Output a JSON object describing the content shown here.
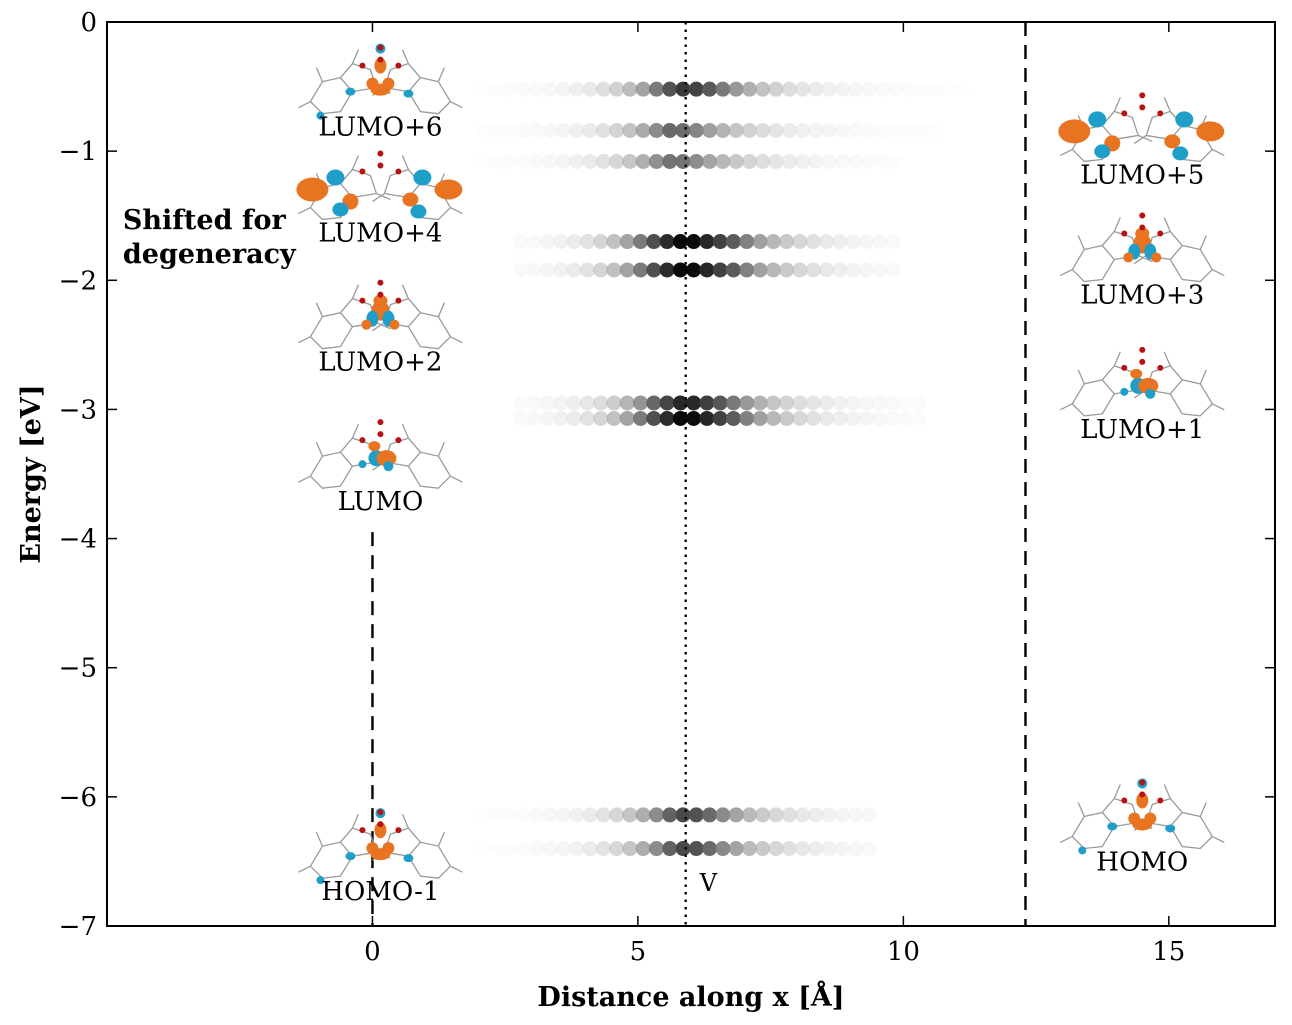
{
  "chart_data": {
    "type": "scatter",
    "title": "",
    "xlabel": "Distance along x [Å]",
    "ylabel": "Energy [eV]",
    "xlim": [
      -5,
      17
    ],
    "ylim": [
      -7,
      0
    ],
    "xticks": [
      {
        "value": 0,
        "label": "0"
      },
      {
        "value": 5,
        "label": "5"
      },
      {
        "value": 10,
        "label": "10"
      },
      {
        "value": 15,
        "label": "15"
      }
    ],
    "yticks": [
      {
        "value": 0,
        "label": "0"
      },
      {
        "value": -1,
        "label": "−1"
      },
      {
        "value": -2,
        "label": "−2"
      },
      {
        "value": -3,
        "label": "−3"
      },
      {
        "value": -4,
        "label": "−4"
      },
      {
        "value": -5,
        "label": "−5"
      },
      {
        "value": -6,
        "label": "−6"
      },
      {
        "value": -7,
        "label": "−7"
      }
    ],
    "grid": false,
    "density_rows": [
      {
        "energy": -0.52,
        "x_start": 2.1,
        "x_end": 11.2,
        "x_peak": 5.9,
        "max_intensity": 0.78
      },
      {
        "energy": -0.84,
        "x_start": 2.1,
        "x_end": 10.6,
        "x_peak": 5.7,
        "max_intensity": 0.62
      },
      {
        "energy": -1.08,
        "x_start": 2.1,
        "x_end": 10.0,
        "x_peak": 5.7,
        "max_intensity": 0.6
      },
      {
        "energy": -1.7,
        "x_start": 2.8,
        "x_end": 10.0,
        "x_peak": 5.9,
        "max_intensity": 1.0
      },
      {
        "energy": -1.92,
        "x_start": 2.8,
        "x_end": 10.0,
        "x_peak": 5.9,
        "max_intensity": 1.0
      },
      {
        "energy": -2.95,
        "x_start": 2.8,
        "x_end": 10.3,
        "x_peak": 5.9,
        "max_intensity": 0.88
      },
      {
        "energy": -3.07,
        "x_start": 2.8,
        "x_end": 10.3,
        "x_peak": 5.9,
        "max_intensity": 1.0
      },
      {
        "energy": -6.14,
        "x_start": 2.1,
        "x_end": 9.5,
        "x_peak": 5.9,
        "max_intensity": 0.72
      },
      {
        "energy": -6.4,
        "x_start": 2.1,
        "x_end": 9.5,
        "x_peak": 5.9,
        "max_intensity": 0.72
      }
    ],
    "reference_lines": [
      {
        "orientation": "vertical",
        "x": 5.9,
        "style": "dotted",
        "label": "V"
      },
      {
        "orientation": "vertical",
        "x": 12.3,
        "style": "dashed"
      },
      {
        "orientation": "vertical",
        "x": 0,
        "y_range": [
          -7,
          -3.95
        ],
        "style": "dashed"
      }
    ],
    "orbital_labels": [
      {
        "label": "LUMO+6",
        "x": 0.15,
        "y": -0.88
      },
      {
        "label": "LUMO+4",
        "x": 0.15,
        "y": -1.7
      },
      {
        "label": "LUMO+2",
        "x": 0.15,
        "y": -2.7
      },
      {
        "label": "LUMO",
        "x": 0.15,
        "y": -3.78
      },
      {
        "label": "HOMO-1",
        "x": 0.15,
        "y": -6.8
      },
      {
        "label": "LUMO+5",
        "x": 14.5,
        "y": -1.25
      },
      {
        "label": "LUMO+3",
        "x": 14.5,
        "y": -2.18
      },
      {
        "label": "LUMO+1",
        "x": 14.5,
        "y": -3.22
      },
      {
        "label": "HOMO",
        "x": 14.5,
        "y": -6.57
      }
    ],
    "annotation": {
      "line1": "Shifted for",
      "line2": "degeneracy",
      "x": -4.7
    }
  },
  "colors": {
    "lobe_orange": "#e87422",
    "lobe_blue": "#1e9ec8",
    "atom_red": "#b81111",
    "molecule_line": "#9a9a9a"
  },
  "molecule_icon": "molecular-orbital-isosurface"
}
